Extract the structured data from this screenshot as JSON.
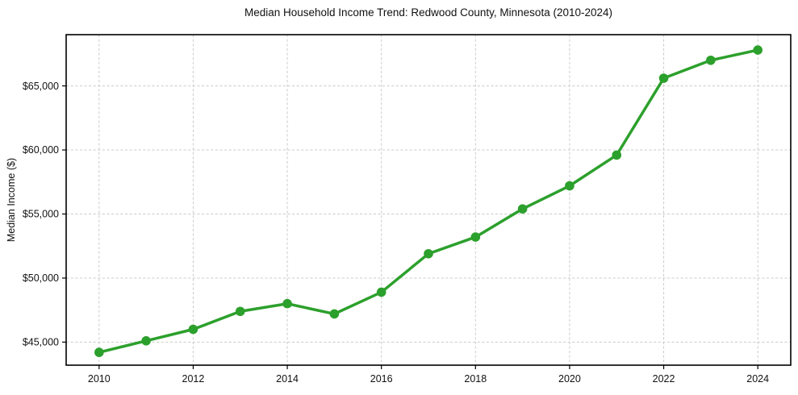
{
  "chart_data": {
    "type": "line",
    "title": "Median Household Income Trend: Redwood County, Minnesota (2010-2024)",
    "xlabel": "",
    "ylabel": "Median Income ($)",
    "x": [
      2010,
      2011,
      2012,
      2013,
      2014,
      2015,
      2016,
      2017,
      2018,
      2019,
      2020,
      2021,
      2022,
      2023,
      2024
    ],
    "series": [
      {
        "name": "Median Household Income",
        "color": "#2ca02c",
        "values": [
          44200,
          45100,
          46000,
          47400,
          48000,
          47200,
          48900,
          51900,
          53200,
          55400,
          57200,
          59600,
          65600,
          67000,
          67800
        ]
      }
    ],
    "x_ticks": [
      2010,
      2012,
      2014,
      2016,
      2018,
      2020,
      2022,
      2024
    ],
    "y_ticks": [
      {
        "value": 45000,
        "label": "$45,000"
      },
      {
        "value": 50000,
        "label": "$50,000"
      },
      {
        "value": 55000,
        "label": "$55,000"
      },
      {
        "value": 60000,
        "label": "$60,000"
      },
      {
        "value": 65000,
        "label": "$65,000"
      }
    ],
    "xlim": [
      2009.3,
      2024.7
    ],
    "ylim": [
      43200,
      69000
    ],
    "grid": true,
    "grid_style": "dashed",
    "grid_color": "#cccccc",
    "axis_color": "#000000",
    "legend": "none",
    "marker": "circle"
  }
}
